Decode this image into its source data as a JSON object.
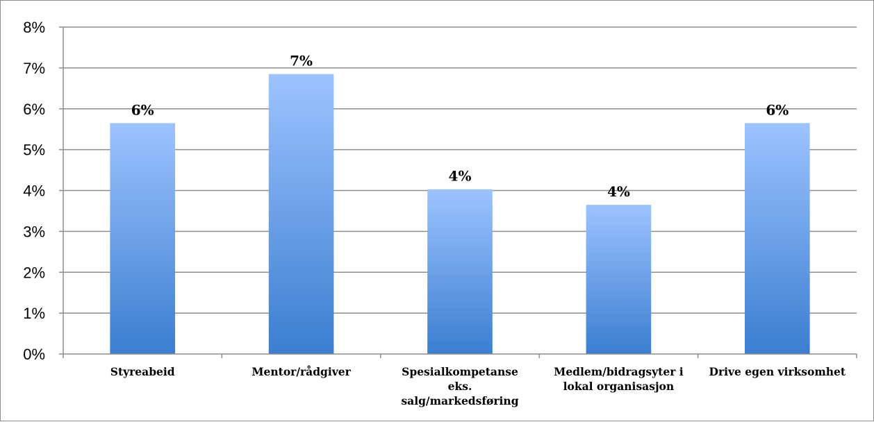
{
  "chart_data": {
    "type": "bar",
    "categories": [
      [
        "Styreabeid"
      ],
      [
        "Mentor/rådgiver"
      ],
      [
        "Spesialkompetanse",
        "eks.",
        "salg/markedsføring"
      ],
      [
        "Medlem/bidragsyter i",
        "lokal organisasjon"
      ],
      [
        "Drive egen virksomhet"
      ]
    ],
    "values": [
      5.65,
      6.85,
      4.03,
      3.65,
      5.65
    ],
    "data_labels": [
      "6%",
      "7%",
      "4%",
      "4%",
      "6%"
    ],
    "y_ticks": [
      "0%",
      "1%",
      "2%",
      "3%",
      "4%",
      "5%",
      "6%",
      "7%",
      "8%"
    ],
    "ylim": [
      0,
      8
    ],
    "grid": true,
    "legend": "none",
    "colors": {
      "bar_top": "#9dc3ff",
      "bar_bottom": "#3b7ed0",
      "grid": "#8c8c8c",
      "axis": "#8c8c8c"
    }
  }
}
